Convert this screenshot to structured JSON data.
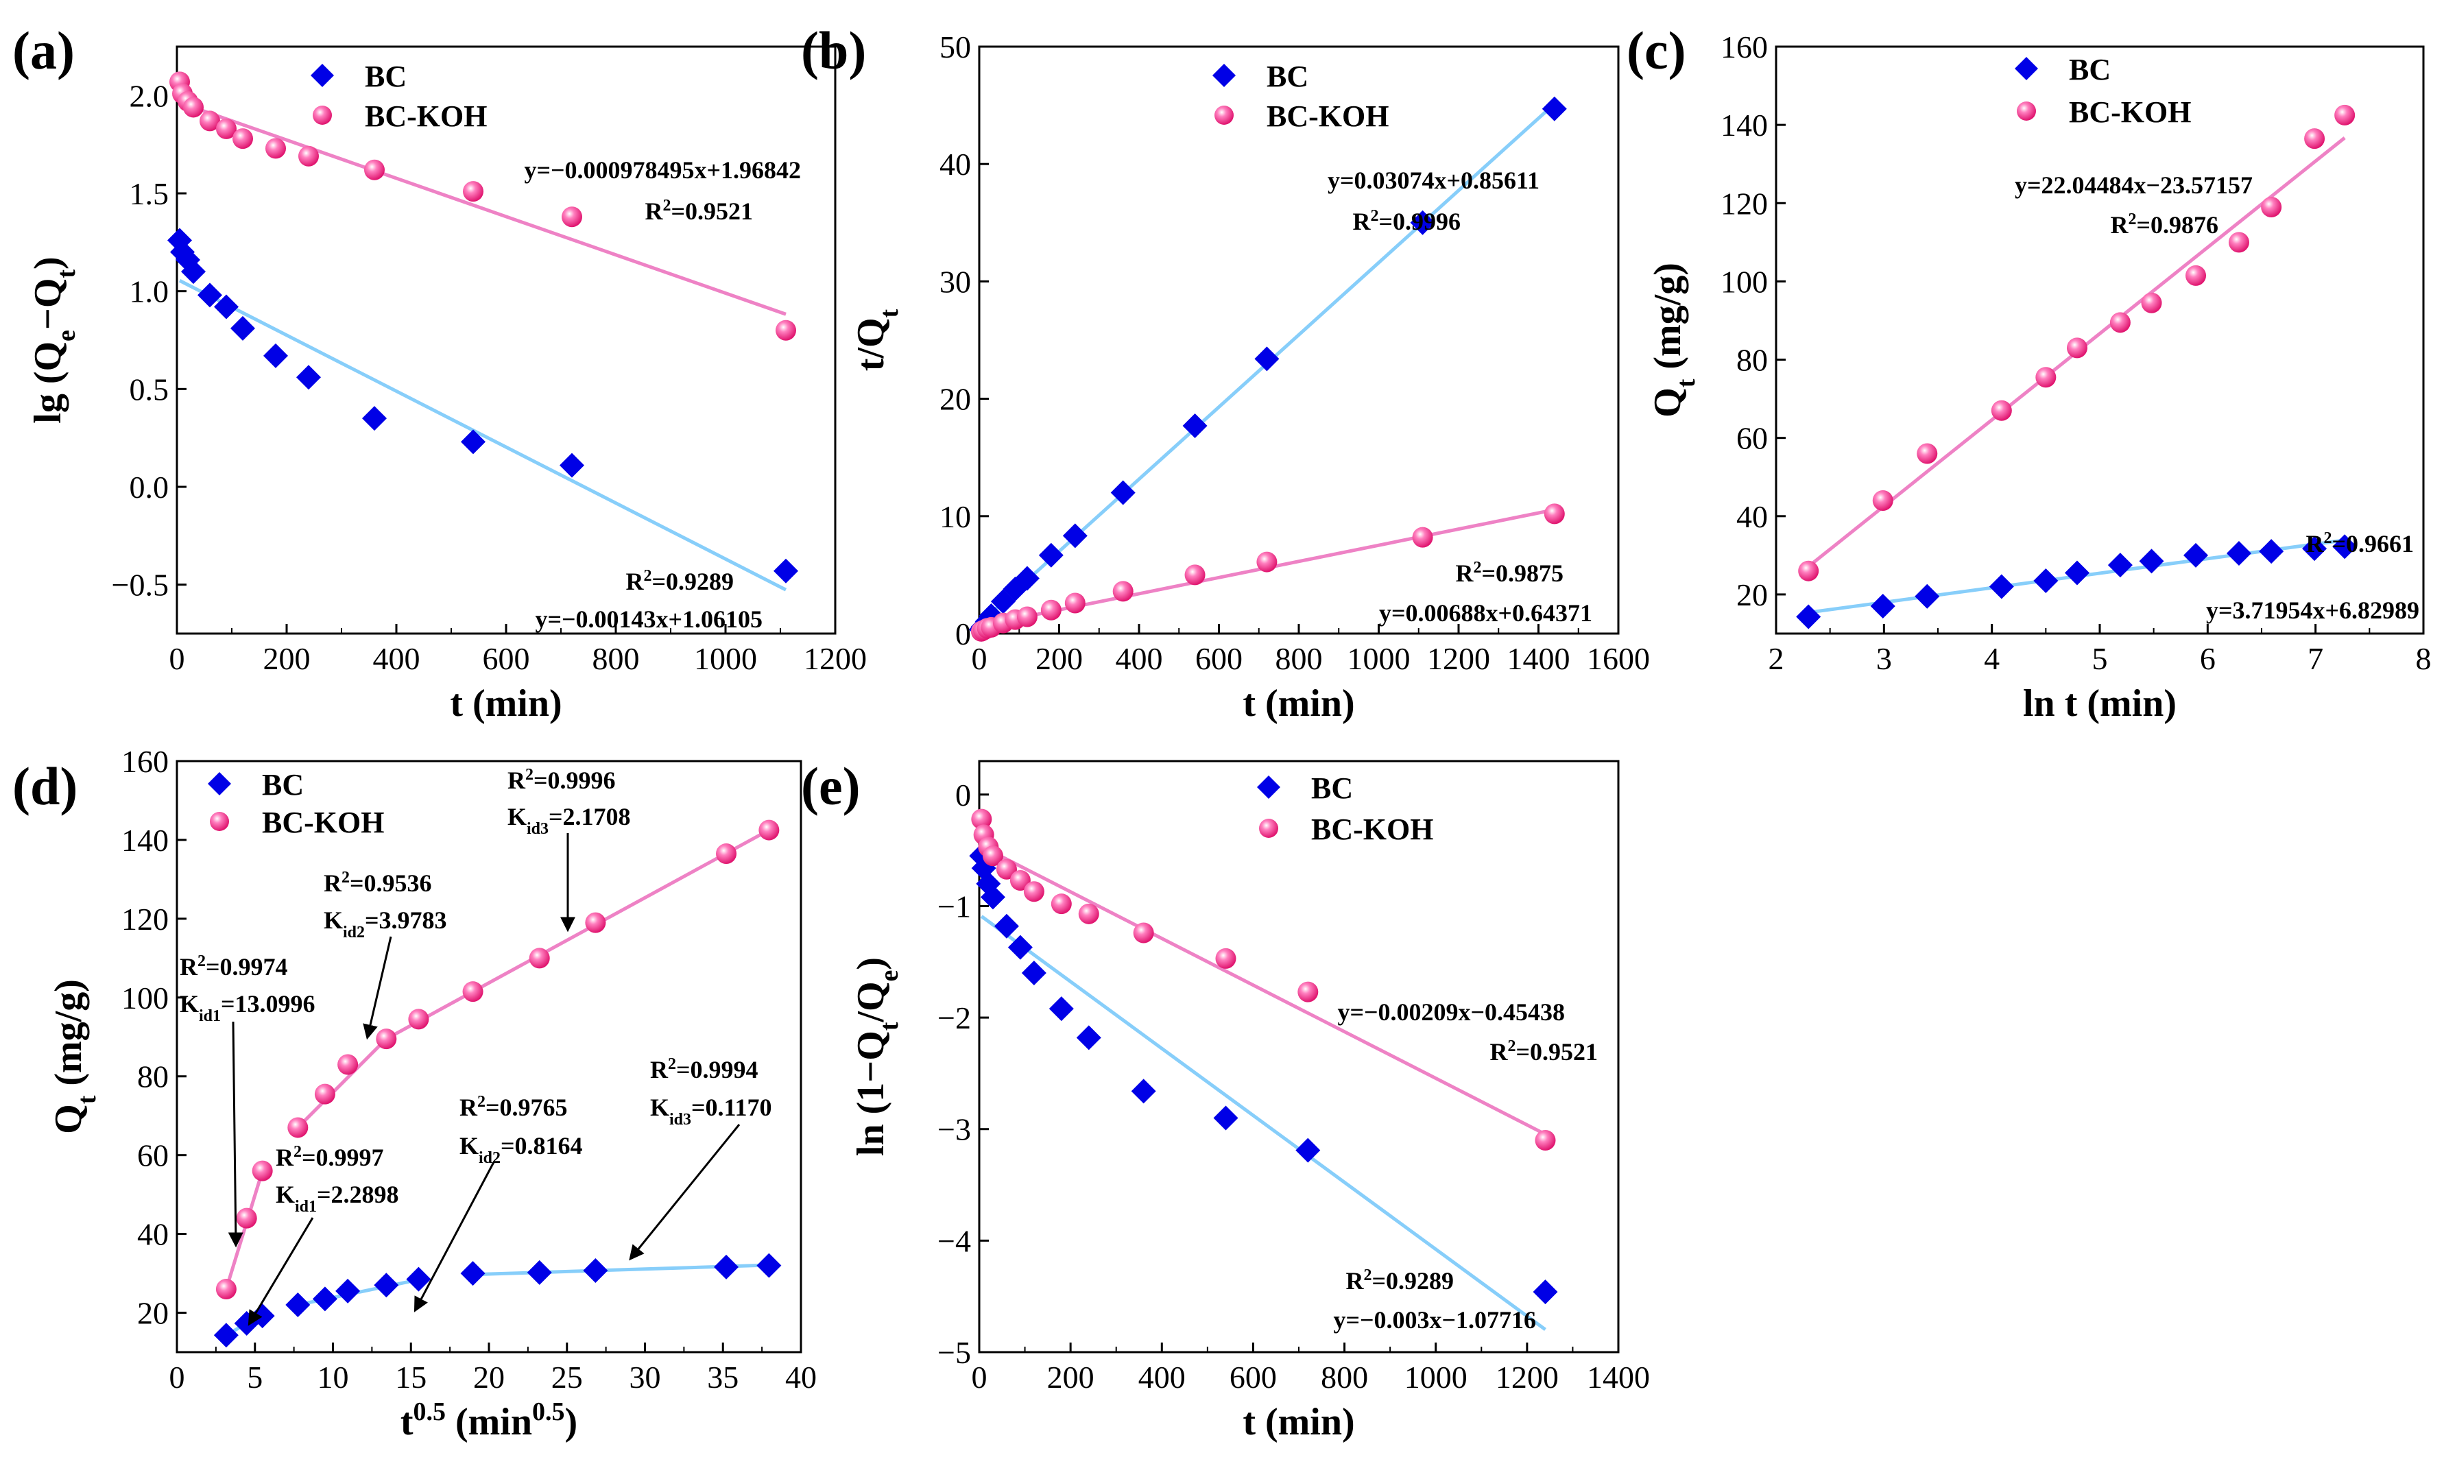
{
  "figure": {
    "colors": {
      "bc": "#0000e6",
      "koh": "#ff3399",
      "bc_fit": "#87cefa",
      "koh_fit": "#ee82c5"
    },
    "markers": {
      "bc": "diamond-icon",
      "koh": "sphere-icon"
    }
  },
  "chart_data": [
    {
      "panel": "(a)",
      "type": "scatter",
      "xlabel": "t (min)",
      "ylabel": "lg (Qe−Qt)",
      "ylabel_parts": [
        "lg (Q",
        "e",
        "−Q",
        "t",
        ")"
      ],
      "xlim": [
        0,
        1200
      ],
      "ylim": [
        -0.75,
        2.25
      ],
      "xticks": [
        0,
        200,
        400,
        600,
        800,
        1000,
        1200
      ],
      "yticks": [
        -0.5,
        0.0,
        0.5,
        1.0,
        1.5,
        2.0
      ],
      "legend": [
        "BC",
        "BC-KOH"
      ],
      "series": [
        {
          "name": "BC",
          "x": [
            5,
            10,
            20,
            30,
            60,
            90,
            120,
            180,
            240,
            360,
            540,
            720,
            1110
          ],
          "y": [
            1.26,
            1.2,
            1.16,
            1.1,
            0.98,
            0.92,
            0.81,
            0.67,
            0.56,
            0.35,
            0.23,
            0.11,
            -0.43
          ]
        },
        {
          "name": "BC-KOH",
          "x": [
            5,
            10,
            20,
            30,
            60,
            90,
            120,
            180,
            240,
            360,
            540,
            720,
            1110
          ],
          "y": [
            2.07,
            2.01,
            1.97,
            1.94,
            1.87,
            1.83,
            1.78,
            1.73,
            1.69,
            1.62,
            1.51,
            1.38,
            0.8
          ]
        }
      ],
      "fits": [
        {
          "name": "BC",
          "slope": -0.00143,
          "intercept": 1.06105,
          "x_range": [
            5,
            1110
          ]
        },
        {
          "name": "BC-KOH",
          "slope": -0.000978495,
          "intercept": 1.96842,
          "x_range": [
            5,
            1110
          ]
        }
      ],
      "annotations": [
        {
          "id": "koh_eq",
          "text": "y=−0.000978495x+1.96842"
        },
        {
          "id": "koh_r2",
          "text": "R2=0.9521"
        },
        {
          "id": "bc_r2",
          "text": "R2=0.9289"
        },
        {
          "id": "bc_eq",
          "text": "y=−0.00143x+1.06105"
        }
      ]
    },
    {
      "panel": "(b)",
      "type": "scatter",
      "xlabel": "t (min)",
      "ylabel": "t/Qt",
      "ylabel_parts": [
        "t/Q",
        "t"
      ],
      "xlim": [
        0,
        1600
      ],
      "ylim": [
        0,
        50
      ],
      "xticks": [
        0,
        200,
        400,
        600,
        800,
        1000,
        1200,
        1400,
        1600
      ],
      "yticks": [
        0,
        10,
        20,
        30,
        40,
        50
      ],
      "legend": [
        "BC",
        "BC-KOH"
      ],
      "series": [
        {
          "name": "BC",
          "x": [
            5,
            10,
            20,
            30,
            60,
            90,
            120,
            180,
            240,
            360,
            540,
            720,
            1110,
            1440
          ],
          "y": [
            0.35,
            0.59,
            1.03,
            1.52,
            2.73,
            3.8,
            4.7,
            6.67,
            8.33,
            12.0,
            17.7,
            23.4,
            35.0,
            44.7
          ]
        },
        {
          "name": "BC-KOH",
          "x": [
            5,
            10,
            20,
            30,
            60,
            90,
            120,
            180,
            240,
            360,
            540,
            720,
            1110,
            1440
          ],
          "y": [
            0.19,
            0.28,
            0.45,
            0.53,
            0.9,
            1.19,
            1.43,
            2.0,
            2.6,
            3.6,
            5.0,
            6.1,
            8.2,
            10.2
          ]
        }
      ],
      "fits": [
        {
          "name": "BC",
          "slope": 0.03074,
          "intercept": 0.85611,
          "x_range": [
            0,
            1440
          ]
        },
        {
          "name": "BC-KOH",
          "slope": 0.00688,
          "intercept": 0.64371,
          "x_range": [
            0,
            1440
          ]
        }
      ],
      "annotations": [
        {
          "id": "bc_eq",
          "text": "y=0.03074x+0.85611"
        },
        {
          "id": "bc_r2",
          "text": "R2=0.9996"
        },
        {
          "id": "koh_r2",
          "text": "R2=0.9875"
        },
        {
          "id": "koh_eq",
          "text": "y=0.00688x+0.64371"
        }
      ]
    },
    {
      "panel": "(c)",
      "type": "scatter",
      "xlabel": "ln t (min)",
      "ylabel": "Qt (mg/g)",
      "ylabel_parts": [
        "Q",
        "t",
        " (mg/g)"
      ],
      "xlim": [
        2,
        8
      ],
      "ylim": [
        10,
        160
      ],
      "xticks": [
        2,
        3,
        4,
        5,
        6,
        7,
        8
      ],
      "yticks": [
        20,
        40,
        60,
        80,
        100,
        120,
        140,
        160
      ],
      "legend": [
        "BC",
        "BC-KOH"
      ],
      "series": [
        {
          "name": "BC",
          "x": [
            2.3,
            2.99,
            3.4,
            4.09,
            4.5,
            4.79,
            5.19,
            5.48,
            5.89,
            6.29,
            6.59,
            6.99,
            7.27
          ],
          "y": [
            14.3,
            17.0,
            19.5,
            22.0,
            23.5,
            25.5,
            27.5,
            28.5,
            30.0,
            30.5,
            31.0,
            31.7,
            32.2
          ]
        },
        {
          "name": "BC-KOH",
          "x": [
            2.3,
            2.99,
            3.4,
            4.09,
            4.5,
            4.79,
            5.19,
            5.48,
            5.89,
            6.29,
            6.59,
            6.99,
            7.27
          ],
          "y": [
            26.0,
            44.0,
            56.0,
            67.0,
            75.5,
            83.0,
            89.5,
            94.5,
            101.5,
            110.0,
            119.0,
            136.5,
            142.5
          ]
        }
      ],
      "fits": [
        {
          "name": "BC",
          "slope": 3.71954,
          "intercept": 6.82989,
          "x_range": [
            2.3,
            7.27
          ]
        },
        {
          "name": "BC-KOH",
          "slope": 22.04484,
          "intercept": -23.57157,
          "x_range": [
            2.3,
            7.27
          ]
        }
      ],
      "annotations": [
        {
          "id": "koh_eq",
          "text": "y=22.04484x−23.57157"
        },
        {
          "id": "koh_r2",
          "text": "R2=0.9876"
        },
        {
          "id": "bc_r2",
          "text": "R2=0.9661"
        },
        {
          "id": "bc_eq",
          "text": "y=3.71954x+6.82989"
        }
      ]
    },
    {
      "panel": "(d)",
      "type": "scatter",
      "xlabel": "t0.5 (min0.5)",
      "ylabel": "Qt (mg/g)",
      "ylabel_parts": [
        "Q",
        "t",
        " (mg/g)"
      ],
      "xlim": [
        0,
        40
      ],
      "ylim": [
        10,
        160
      ],
      "xticks": [
        0,
        5,
        10,
        15,
        20,
        25,
        30,
        35,
        40
      ],
      "yticks": [
        20,
        40,
        60,
        80,
        100,
        120,
        140,
        160
      ],
      "legend": [
        "BC",
        "BC-KOH"
      ],
      "series": [
        {
          "name": "BC",
          "x": [
            3.16,
            4.47,
            5.48,
            7.75,
            9.49,
            10.95,
            13.42,
            15.49,
            18.97,
            23.24,
            26.83,
            35.21,
            37.95
          ],
          "y": [
            14.3,
            17.3,
            19.2,
            22.0,
            23.5,
            25.5,
            27.0,
            28.5,
            30.0,
            30.2,
            30.7,
            31.6,
            32.0
          ]
        },
        {
          "name": "BC-KOH",
          "x": [
            3.16,
            4.47,
            5.48,
            7.75,
            9.49,
            10.95,
            13.42,
            15.49,
            18.97,
            23.24,
            26.83,
            35.21,
            37.95
          ],
          "y": [
            26.0,
            44.0,
            56.0,
            67.0,
            75.5,
            83.0,
            89.5,
            94.5,
            101.5,
            110.0,
            119.0,
            136.5,
            142.5
          ]
        }
      ],
      "fits": [
        {
          "name": "BC",
          "x": [
            3.16,
            5.48
          ],
          "y": [
            14.3,
            19.6
          ]
        },
        {
          "name": "BC",
          "x": [
            7.75,
            15.49
          ],
          "y": [
            22.0,
            28.4
          ]
        },
        {
          "name": "BC",
          "x": [
            18.97,
            37.95
          ],
          "y": [
            29.7,
            32.1
          ]
        },
        {
          "name": "BC-KOH",
          "x": [
            3.16,
            5.48
          ],
          "y": [
            26.0,
            56.0
          ]
        },
        {
          "name": "BC-KOH",
          "x": [
            7.75,
            13.42
          ],
          "y": [
            67.0,
            89.5
          ]
        },
        {
          "name": "BC-KOH",
          "x": [
            13.42,
            37.95
          ],
          "y": [
            89.5,
            142.5
          ]
        }
      ],
      "annotations": [
        {
          "id": "koh_r2_3",
          "r2": "0.9996",
          "k": "id3",
          "kval": "2.1708"
        },
        {
          "id": "koh_r2_2",
          "r2": "0.9536",
          "k": "id2",
          "kval": "3.9783"
        },
        {
          "id": "koh_r2_1",
          "r2": "0.9974",
          "k": "id1",
          "kval": "13.0996"
        },
        {
          "id": "bc_r2_1",
          "r2": "0.9997",
          "k": "id1",
          "kval": "2.2898"
        },
        {
          "id": "bc_r2_2",
          "r2": "0.9765",
          "k": "id2",
          "kval": "0.8164"
        },
        {
          "id": "bc_r2_3",
          "r2": "0.9994",
          "k": "id3",
          "kval": "0.1170"
        }
      ]
    },
    {
      "panel": "(e)",
      "type": "scatter",
      "xlabel": "t (min)",
      "ylabel": "ln (1−Qt/Qe)",
      "ylabel_parts": [
        "ln (1−Q",
        "t",
        "/Q",
        "e",
        ")"
      ],
      "xlim": [
        0,
        1400
      ],
      "ylim": [
        -5,
        0.3
      ],
      "xticks": [
        0,
        200,
        400,
        600,
        800,
        1000,
        1200,
        1400
      ],
      "yticks": [
        -5,
        -4,
        -3,
        -2,
        -1,
        0
      ],
      "legend": [
        "BC",
        "BC-KOH"
      ],
      "series": [
        {
          "name": "BC",
          "x": [
            5,
            10,
            20,
            30,
            60,
            90,
            120,
            180,
            240,
            360,
            540,
            720,
            1240
          ],
          "y": [
            -0.55,
            -0.66,
            -0.8,
            -0.92,
            -1.18,
            -1.37,
            -1.6,
            -1.92,
            -2.18,
            -2.66,
            -2.9,
            -3.19,
            -4.46
          ]
        },
        {
          "name": "BC-KOH",
          "x": [
            5,
            10,
            20,
            30,
            60,
            90,
            120,
            180,
            240,
            360,
            540,
            720,
            1240
          ],
          "y": [
            -0.22,
            -0.36,
            -0.47,
            -0.55,
            -0.67,
            -0.77,
            -0.87,
            -0.98,
            -1.07,
            -1.24,
            -1.47,
            -1.77,
            -3.1
          ]
        }
      ],
      "fits": [
        {
          "name": "BC",
          "slope": -0.003,
          "intercept": -1.07716,
          "x_range": [
            5,
            1240
          ]
        },
        {
          "name": "BC-KOH",
          "slope": -0.00209,
          "intercept": -0.45438,
          "x_range": [
            5,
            1240
          ]
        }
      ],
      "annotations": [
        {
          "id": "koh_eq",
          "text": "y=−0.00209x−0.45438"
        },
        {
          "id": "koh_r2",
          "text": "R2=0.9521"
        },
        {
          "id": "bc_r2",
          "text": "R2=0.9289"
        },
        {
          "id": "bc_eq",
          "text": "y=−0.003x−1.07716"
        }
      ]
    }
  ]
}
